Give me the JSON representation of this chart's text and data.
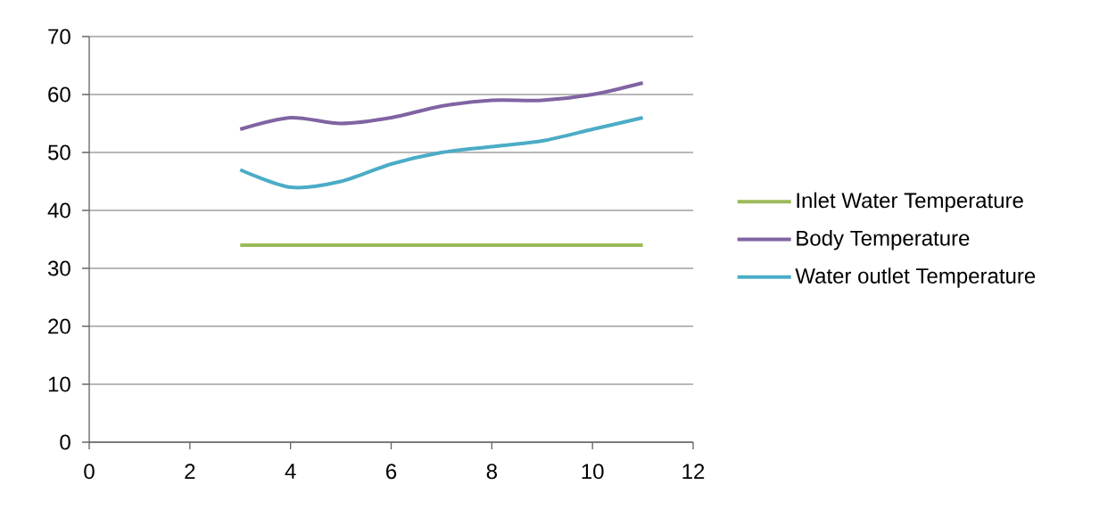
{
  "chart_data": {
    "type": "line",
    "x": [
      3,
      4,
      5,
      6,
      7,
      8,
      9,
      10,
      11
    ],
    "series": [
      {
        "name": "Inlet Water Temperature",
        "color": "#9bbb59",
        "values": [
          34,
          34,
          34,
          34,
          34,
          34,
          34,
          34,
          34
        ]
      },
      {
        "name": "Body Temperature",
        "color": "#8064a2",
        "values": [
          54,
          56,
          55,
          56,
          58,
          59,
          59,
          60,
          62
        ]
      },
      {
        "name": "Water outlet Temperature",
        "color": "#4bacc6",
        "values": [
          47,
          44,
          45,
          48,
          50,
          51,
          52,
          54,
          56
        ]
      }
    ],
    "xlim": [
      0,
      12
    ],
    "xticks": [
      0,
      2,
      4,
      6,
      8,
      10,
      12
    ],
    "ylim": [
      0,
      70
    ],
    "yticks": [
      0,
      10,
      20,
      30,
      40,
      50,
      60,
      70
    ],
    "grid": "y",
    "legend": "right",
    "line_style": "solid"
  }
}
